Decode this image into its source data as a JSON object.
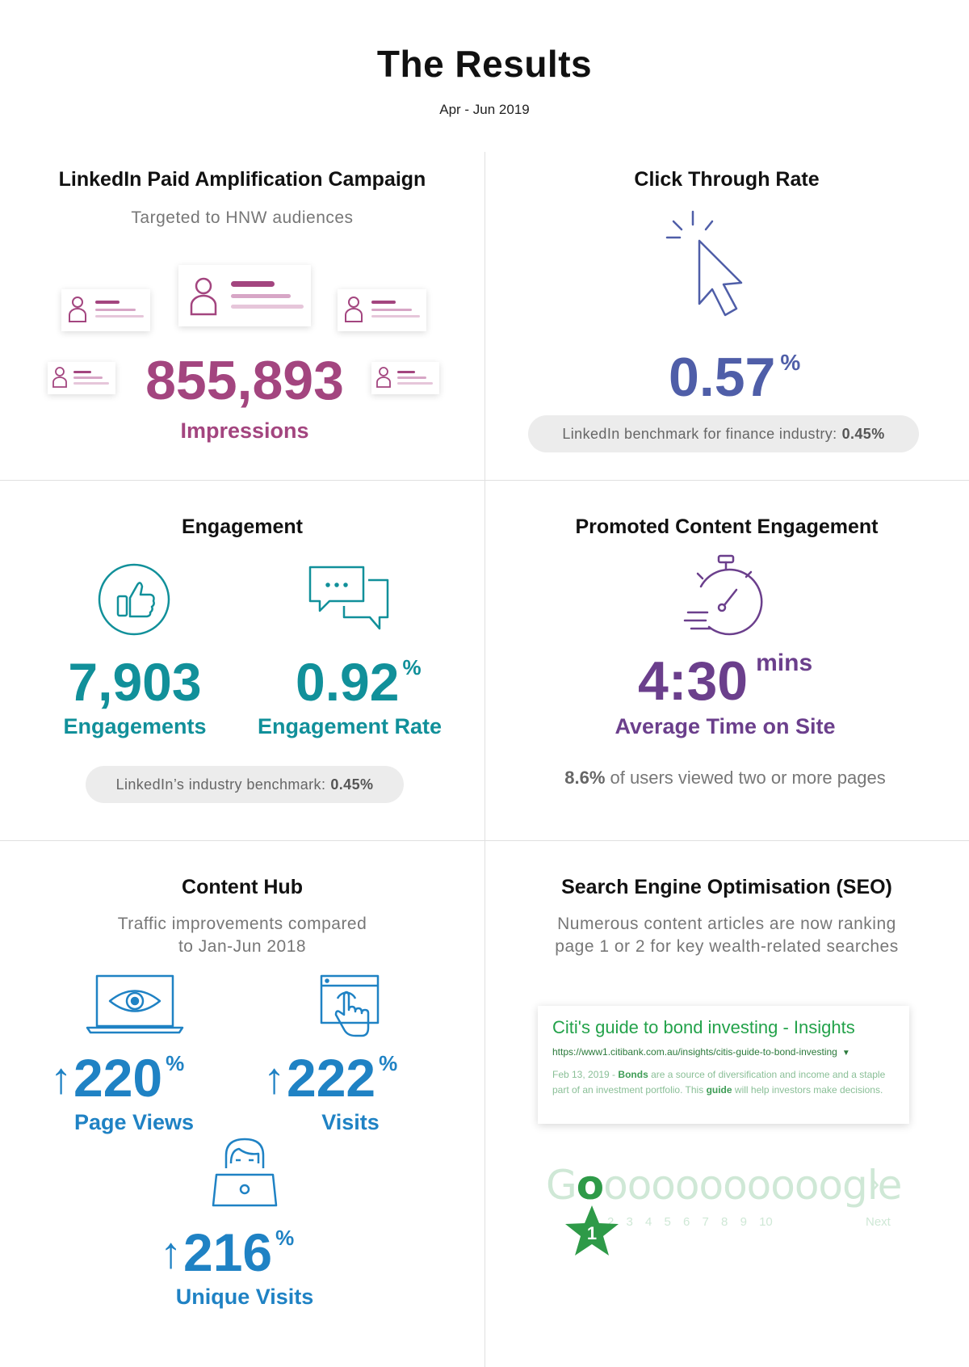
{
  "header": {
    "title": "The Results",
    "period": "Apr - Jun 2019"
  },
  "linkedin": {
    "title": "LinkedIn Paid Amplification Campaign",
    "subtitle": "Targeted to HNW audiences",
    "value": "855,893",
    "label": "Impressions",
    "color": "#a3457f"
  },
  "ctr": {
    "title": "Click Through Rate",
    "value": "0.57",
    "unit": "%",
    "benchmark_text": "LinkedIn benchmark for finance industry:",
    "benchmark_value": "0.45%",
    "color": "#4f5ea8"
  },
  "engagement": {
    "title": "Engagement",
    "count_value": "7,903",
    "count_label": "Engagements",
    "rate_value": "0.92",
    "rate_unit": "%",
    "rate_label": "Engagement Rate",
    "benchmark_text": "LinkedIn’s industry benchmark:",
    "benchmark_value": "0.45%",
    "color": "#11909a"
  },
  "promoted": {
    "title": "Promoted Content Engagement",
    "value": "4:30",
    "unit": "mins",
    "label": "Average Time on Site",
    "note_value": "8.6%",
    "note_text": "of users viewed two or more pages",
    "color": "#6b3f8c"
  },
  "content_hub": {
    "title": "Content Hub",
    "subtitle_line1": "Traffic improvements compared",
    "subtitle_line2": "to Jan-Jun 2018",
    "arrow": "↑",
    "metrics": [
      {
        "value": "220",
        "unit": "%",
        "label": "Page Views"
      },
      {
        "value": "222",
        "unit": "%",
        "label": "Visits"
      },
      {
        "value": "216",
        "unit": "%",
        "label": "Unique Visits"
      }
    ],
    "color": "#1f82c4"
  },
  "seo": {
    "title": "Search Engine Optimisation (SEO)",
    "subtitle_line1": "Numerous content articles are now ranking",
    "subtitle_line2": "page 1 or 2 for key wealth-related searches",
    "result_title": "Citi's guide to bond investing - Insights",
    "result_url": "https://www1.citibank.com.au/insights/citis-guide-to-bond-investing",
    "result_date": "Feb 13, 2019 -",
    "result_bold1": "Bonds",
    "result_text1": "are a source of diversification and income and a staple part of an investment portfolio. This",
    "result_bold2": "guide",
    "result_text2": "will help investors make decisions.",
    "google_prefix": "G",
    "google_o": "o",
    "google_rest": "oooooooooogle",
    "page_numbers": "2 3 4 5 6 7 8 9 10",
    "next_label": "Next",
    "rank_badge": "1",
    "color": "#23a24a"
  }
}
